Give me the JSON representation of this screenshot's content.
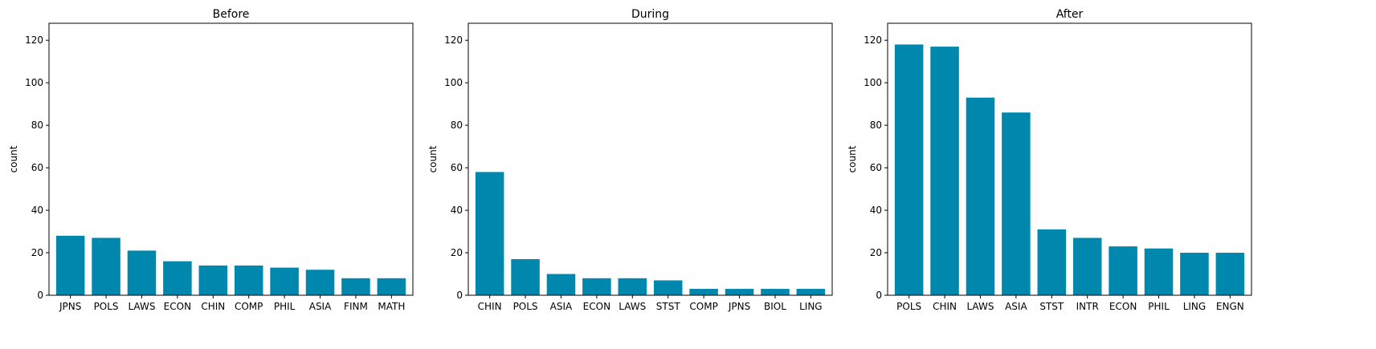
{
  "chart_data": [
    {
      "type": "bar",
      "title": "Before",
      "xlabel": "",
      "ylabel": "count",
      "ylim": [
        0,
        128
      ],
      "yticks": [
        0,
        20,
        40,
        60,
        80,
        100,
        120
      ],
      "categories": [
        "JPNS",
        "POLS",
        "LAWS",
        "ECON",
        "CHIN",
        "COMP",
        "PHIL",
        "ASIA",
        "FINM",
        "MATH"
      ],
      "values": [
        28,
        27,
        21,
        16,
        14,
        14,
        13,
        12,
        8,
        8
      ],
      "color": "#0087ad"
    },
    {
      "type": "bar",
      "title": "During",
      "xlabel": "",
      "ylabel": "count",
      "ylim": [
        0,
        128
      ],
      "yticks": [
        0,
        20,
        40,
        60,
        80,
        100,
        120
      ],
      "categories": [
        "CHIN",
        "POLS",
        "ASIA",
        "ECON",
        "LAWS",
        "STST",
        "COMP",
        "JPNS",
        "BIOL",
        "LING"
      ],
      "values": [
        58,
        17,
        10,
        8,
        8,
        7,
        3,
        3,
        3,
        3
      ],
      "color": "#0087ad"
    },
    {
      "type": "bar",
      "title": "After",
      "xlabel": "",
      "ylabel": "count",
      "ylim": [
        0,
        128
      ],
      "yticks": [
        0,
        20,
        40,
        60,
        80,
        100,
        120
      ],
      "categories": [
        "POLS",
        "CHIN",
        "LAWS",
        "ASIA",
        "STST",
        "INTR",
        "ECON",
        "PHIL",
        "LING",
        "ENGN"
      ],
      "values": [
        118,
        117,
        93,
        86,
        31,
        27,
        23,
        22,
        20,
        20
      ],
      "color": "#0087ad"
    }
  ]
}
